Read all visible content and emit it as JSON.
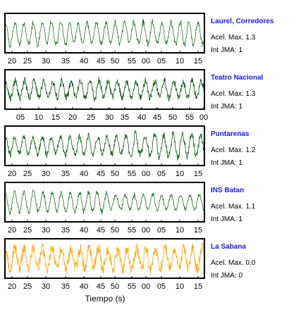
{
  "chart_data": {
    "type": "line",
    "xlabel": "Tiempo (s)",
    "panels": [
      {
        "station": "Laurel, Corredores",
        "acel_label": "Acel. Max. 1.3",
        "jma_label": "Int JMA: 1",
        "color": "#1f7a1f",
        "tick_labels": [
          "20",
          "25",
          "30",
          "35",
          "40",
          "45",
          "50",
          "55",
          "00",
          "05",
          "10",
          "15"
        ]
      },
      {
        "station": "Teatro Nacional",
        "acel_label": "Acel. Max. 1.3",
        "jma_label": "Int JMA: 1",
        "color": "#0b5e0b",
        "tick_labels": [
          "05",
          "10",
          "15",
          "20",
          "25",
          "30",
          "35",
          "40",
          "45",
          "50",
          "55",
          "00"
        ]
      },
      {
        "station": "Puntarenas",
        "acel_label": "Acel. Max. 1.2",
        "jma_label": "Int JMA: 1",
        "color": "#0b5e0b",
        "tick_labels": [
          "20",
          "25",
          "30",
          "35",
          "40",
          "45",
          "50",
          "55",
          "00",
          "05",
          "10",
          "15"
        ]
      },
      {
        "station": "INS Batan",
        "acel_label": "Acel. Max. 1.1",
        "jma_label": "Int JMA: 1",
        "color": "#1f7a1f",
        "tick_labels": [
          "20",
          "25",
          "30",
          "35",
          "40",
          "45",
          "50",
          "55",
          "00",
          "05",
          "10",
          "15"
        ]
      },
      {
        "station": "La Sabana",
        "acel_label": "Acel. Max. 0.0",
        "jma_label": "Int JMA: 0",
        "color": "#ffa500",
        "tick_labels": [
          "20",
          "25",
          "30",
          "35",
          "40",
          "45",
          "50",
          "55",
          "00",
          "05",
          "10",
          "15"
        ]
      }
    ]
  }
}
